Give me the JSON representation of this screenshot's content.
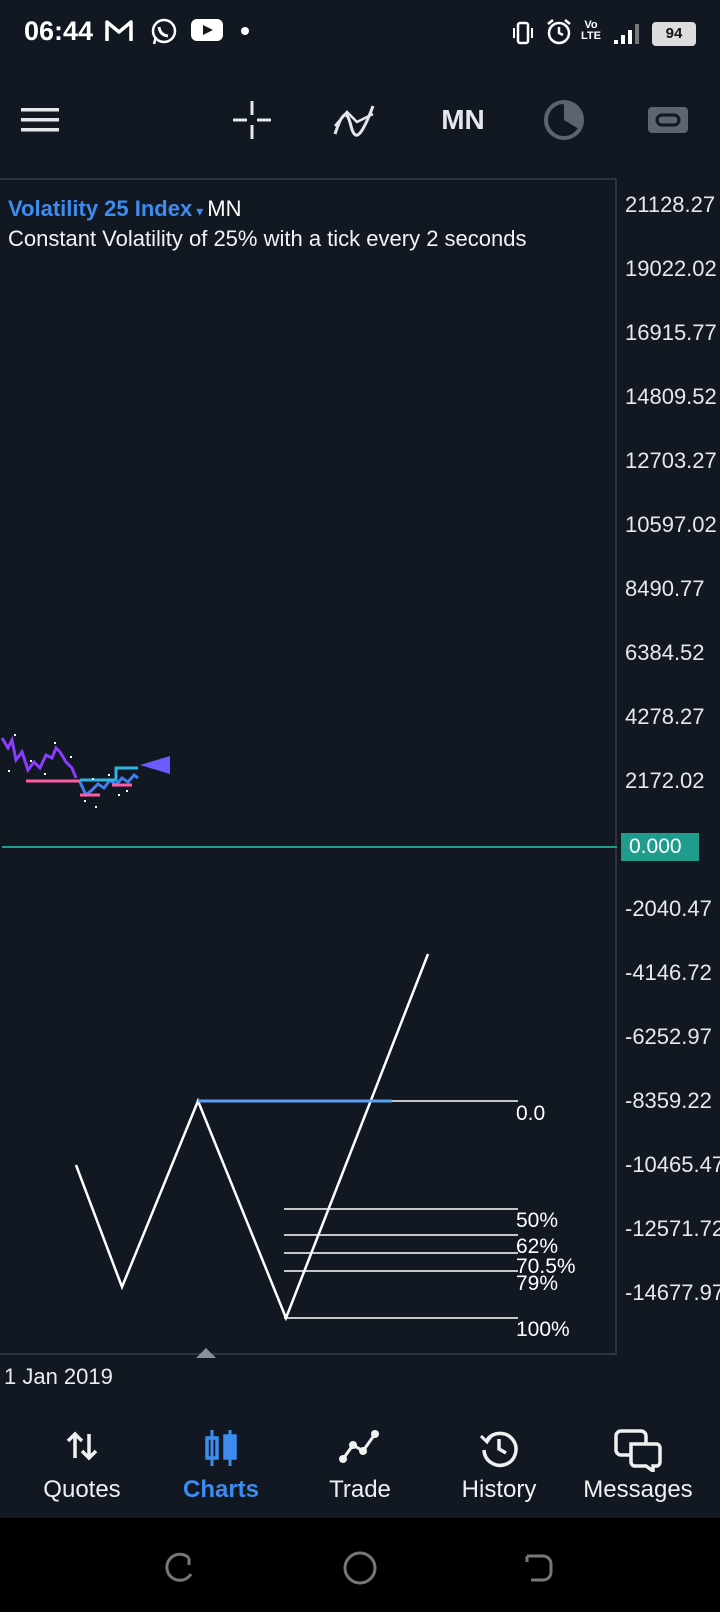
{
  "status_bar": {
    "time": "06:44",
    "lte_top": "Vo",
    "lte_bottom": "LTE",
    "battery": "94",
    "icons": [
      "gmail-icon",
      "whatsapp-icon",
      "youtube-icon",
      "dot-icon",
      "vibrate-icon",
      "alarm-icon",
      "signal-icon",
      "battery-icon"
    ]
  },
  "toolbar": {
    "menu_icon": "hamburger-menu-icon",
    "crosshair_icon": "crosshair-icon",
    "indicators_icon": "indicators-icon",
    "timeframe": "MN",
    "clock_icon": "clock-icon",
    "objects_icon": "objects-icon"
  },
  "chart": {
    "symbol": "Volatility 25 Index",
    "arrow": "▾",
    "timeframe": "MN",
    "description": "Constant Volatility of 25% with a tick every 2 seconds",
    "current_price": "0.000",
    "date_label": "1 Jan 2019",
    "y_axis_labels": [
      "21128.27",
      "19022.02",
      "16915.77",
      "14809.52",
      "12703.27",
      "10597.02",
      "8490.77",
      "6384.52",
      "4278.27",
      "2172.02",
      "-2040.47",
      "-4146.72",
      "-6252.97",
      "-8359.22",
      "-10465.47",
      "-12571.72",
      "-14677.97"
    ],
    "fib_levels": [
      "0.0",
      "50%",
      "62%",
      "70.5%",
      "79%",
      "100%"
    ],
    "colors": {
      "background": "#111822",
      "price_line": "#1f9c8c",
      "accent": "#3d8cf0",
      "fib_line": "#ffffff",
      "fib_top": "#5aa0f0"
    }
  },
  "nav": {
    "items": [
      {
        "label": "Quotes",
        "icon": "quotes-icon"
      },
      {
        "label": "Charts",
        "icon": "charts-icon"
      },
      {
        "label": "Trade",
        "icon": "trade-icon"
      },
      {
        "label": "History",
        "icon": "history-icon"
      },
      {
        "label": "Messages",
        "icon": "messages-icon"
      }
    ],
    "active": "Charts"
  },
  "system_nav": {
    "icons": [
      "recents-icon",
      "home-icon",
      "back-icon"
    ]
  }
}
